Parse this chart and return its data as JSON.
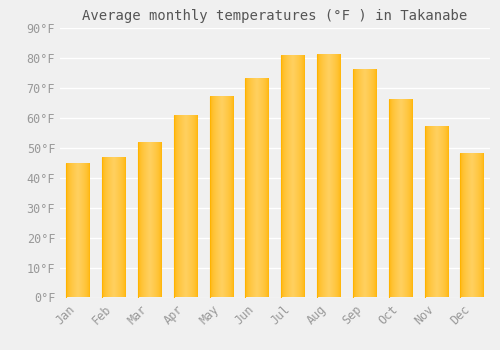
{
  "title": "Average monthly temperatures (°F ) in Takanabe",
  "months": [
    "Jan",
    "Feb",
    "Mar",
    "Apr",
    "May",
    "Jun",
    "Jul",
    "Aug",
    "Sep",
    "Oct",
    "Nov",
    "Dec"
  ],
  "values": [
    44.5,
    46.5,
    51.5,
    60.5,
    67,
    73,
    80.5,
    81,
    76,
    66,
    57,
    48
  ],
  "bar_color_left": "#FFB300",
  "bar_color_right": "#FFD060",
  "bar_color_center": "#FFC830",
  "background_color": "#F0F0F0",
  "grid_color": "#FFFFFF",
  "tick_label_color": "#999999",
  "title_color": "#555555",
  "ylim": [
    0,
    90
  ],
  "yticks": [
    0,
    10,
    20,
    30,
    40,
    50,
    60,
    70,
    80,
    90
  ],
  "ytick_labels": [
    "0°F",
    "10°F",
    "20°F",
    "30°F",
    "40°F",
    "50°F",
    "60°F",
    "70°F",
    "80°F",
    "90°F"
  ],
  "title_fontsize": 10,
  "tick_fontsize": 8.5
}
